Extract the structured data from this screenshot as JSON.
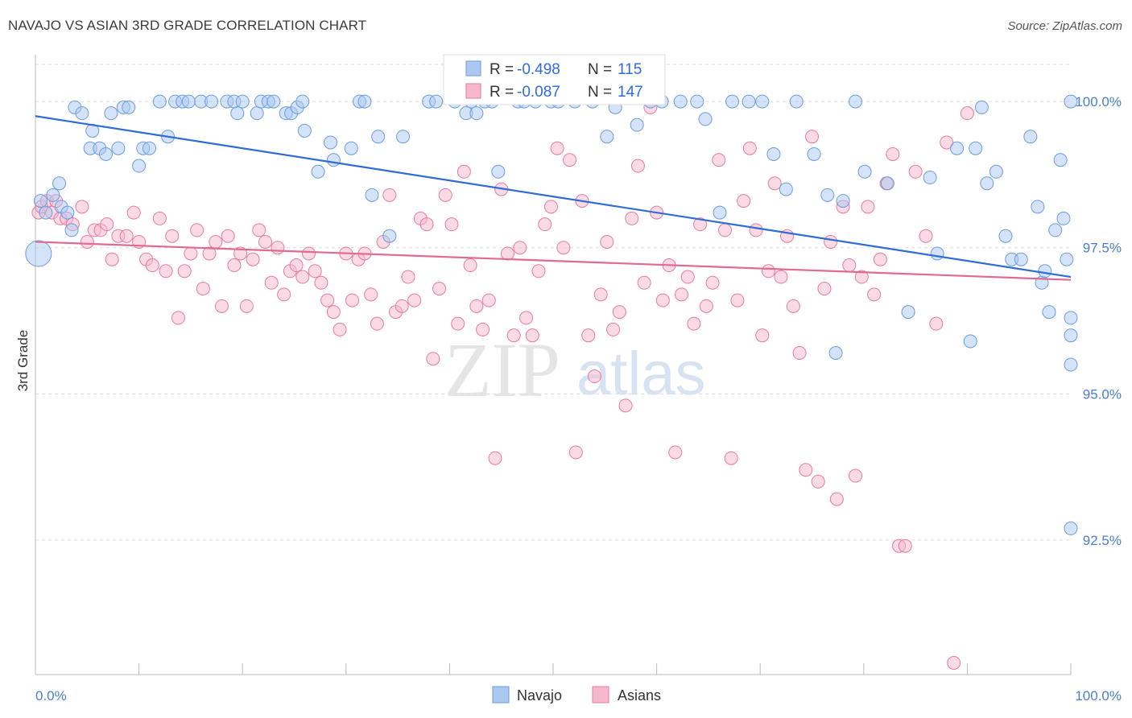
{
  "title": "NAVAJO VS ASIAN 3RD GRADE CORRELATION CHART",
  "source": "Source: ZipAtlas.com",
  "watermark": {
    "zip": "ZIP",
    "atlas": "atlas"
  },
  "chart_data": {
    "type": "scatter",
    "xlabel": "",
    "ylabel": "3rd Grade",
    "xlim": [
      0,
      100
    ],
    "ylim": [
      90.2,
      100.8
    ],
    "x_tick_labels": {
      "left": "0.0%",
      "right": "100.0%"
    },
    "y_ticks": [
      {
        "value": 100.0,
        "label": "100.0%"
      },
      {
        "value": 97.5,
        "label": "97.5%"
      },
      {
        "value": 95.0,
        "label": "95.0%"
      },
      {
        "value": 92.5,
        "label": "92.5%"
      }
    ],
    "legend_stats": [
      {
        "r_label": "R =",
        "r_value": "-0.498",
        "n_label": "N =",
        "n_value": "115"
      },
      {
        "r_label": "R =",
        "r_value": "-0.087",
        "n_label": "N =",
        "n_value": "147"
      }
    ],
    "series": [
      {
        "name": "Navajo",
        "color": "#6a9de0",
        "fill": "#aac8f0",
        "trend": {
          "x": [
            0,
            100
          ],
          "y": [
            99.75,
            97.0
          ]
        },
        "points": [
          [
            0.3,
            97.4
          ],
          [
            0.5,
            98.3
          ],
          [
            1.0,
            98.1
          ],
          [
            1.7,
            98.4
          ],
          [
            2.3,
            98.6
          ],
          [
            2.5,
            98.2
          ],
          [
            3.1,
            98.1
          ],
          [
            3.5,
            97.8
          ],
          [
            3.8,
            99.9
          ],
          [
            4.5,
            99.8
          ],
          [
            5.3,
            99.2
          ],
          [
            5.5,
            99.5
          ],
          [
            6.2,
            99.2
          ],
          [
            6.8,
            99.1
          ],
          [
            7.3,
            99.8
          ],
          [
            8.0,
            99.2
          ],
          [
            8.5,
            99.9
          ],
          [
            9.0,
            99.9
          ],
          [
            10.0,
            98.9
          ],
          [
            10.4,
            99.2
          ],
          [
            11.0,
            99.2
          ],
          [
            12.0,
            100.0
          ],
          [
            12.8,
            99.4
          ],
          [
            13.5,
            100.0
          ],
          [
            14.2,
            100.0
          ],
          [
            14.8,
            100.0
          ],
          [
            16.0,
            100.0
          ],
          [
            17.0,
            100.0
          ],
          [
            18.5,
            100.0
          ],
          [
            19.2,
            100.0
          ],
          [
            19.5,
            99.8
          ],
          [
            20.0,
            100.0
          ],
          [
            21.4,
            99.8
          ],
          [
            21.8,
            100.0
          ],
          [
            22.5,
            100.0
          ],
          [
            23.0,
            100.0
          ],
          [
            24.2,
            99.8
          ],
          [
            24.7,
            99.8
          ],
          [
            25.3,
            99.9
          ],
          [
            25.8,
            100.0
          ],
          [
            26.0,
            99.5
          ],
          [
            27.3,
            98.8
          ],
          [
            28.5,
            99.3
          ],
          [
            28.8,
            99.0
          ],
          [
            30.5,
            99.2
          ],
          [
            31.3,
            100.0
          ],
          [
            31.8,
            100.0
          ],
          [
            32.5,
            98.4
          ],
          [
            33.1,
            99.4
          ],
          [
            34.2,
            97.7
          ],
          [
            35.5,
            99.4
          ],
          [
            38.0,
            100.0
          ],
          [
            38.7,
            100.0
          ],
          [
            40.5,
            100.0
          ],
          [
            41.6,
            99.8
          ],
          [
            42.1,
            100.0
          ],
          [
            42.6,
            99.8
          ],
          [
            43.4,
            100.0
          ],
          [
            44.1,
            100.0
          ],
          [
            44.7,
            98.8
          ],
          [
            46.6,
            100.0
          ],
          [
            47.2,
            100.0
          ],
          [
            48.3,
            100.0
          ],
          [
            49.8,
            100.0
          ],
          [
            50.5,
            100.0
          ],
          [
            52.1,
            100.0
          ],
          [
            53.8,
            100.0
          ],
          [
            55.2,
            99.4
          ],
          [
            56.0,
            99.9
          ],
          [
            58.1,
            99.6
          ],
          [
            59.4,
            100.0
          ],
          [
            60.5,
            100.0
          ],
          [
            62.3,
            100.0
          ],
          [
            63.9,
            100.0
          ],
          [
            64.7,
            99.7
          ],
          [
            66.1,
            98.1
          ],
          [
            67.3,
            100.0
          ],
          [
            68.9,
            100.0
          ],
          [
            70.2,
            100.0
          ],
          [
            71.3,
            99.1
          ],
          [
            72.5,
            98.5
          ],
          [
            73.5,
            100.0
          ],
          [
            75.2,
            99.1
          ],
          [
            76.5,
            98.4
          ],
          [
            77.3,
            95.7
          ],
          [
            78.0,
            98.3
          ],
          [
            79.2,
            100.0
          ],
          [
            80.1,
            98.8
          ],
          [
            82.3,
            98.6
          ],
          [
            84.3,
            96.4
          ],
          [
            86.4,
            98.7
          ],
          [
            87.1,
            97.4
          ],
          [
            89.0,
            99.2
          ],
          [
            90.3,
            95.9
          ],
          [
            90.8,
            99.2
          ],
          [
            91.4,
            99.9
          ],
          [
            91.9,
            98.6
          ],
          [
            92.8,
            98.8
          ],
          [
            93.7,
            97.7
          ],
          [
            94.3,
            97.3
          ],
          [
            95.2,
            97.3
          ],
          [
            96.1,
            99.4
          ],
          [
            96.8,
            98.2
          ],
          [
            97.2,
            96.9
          ],
          [
            97.5,
            97.1
          ],
          [
            97.9,
            96.4
          ],
          [
            98.5,
            97.8
          ],
          [
            99.0,
            99.0
          ],
          [
            99.3,
            98.0
          ],
          [
            99.6,
            97.3
          ],
          [
            100.0,
            100.0
          ],
          [
            100.0,
            96.3
          ],
          [
            100.0,
            96.0
          ],
          [
            100.0,
            95.5
          ],
          [
            100.0,
            92.7
          ]
        ]
      },
      {
        "name": "Asians",
        "color": "#e87aa0",
        "fill": "#f5b8cc",
        "trend": {
          "x": [
            0,
            100
          ],
          "y": [
            97.6,
            96.95
          ]
        },
        "points": [
          [
            0.3,
            98.1
          ],
          [
            0.6,
            98.2
          ],
          [
            1.1,
            98.3
          ],
          [
            1.6,
            98.1
          ],
          [
            2.0,
            98.3
          ],
          [
            2.4,
            98.0
          ],
          [
            3.0,
            98.0
          ],
          [
            3.6,
            97.9
          ],
          [
            4.5,
            98.2
          ],
          [
            5.0,
            97.6
          ],
          [
            5.7,
            97.8
          ],
          [
            6.3,
            97.8
          ],
          [
            6.9,
            97.9
          ],
          [
            7.4,
            97.3
          ],
          [
            8.0,
            97.7
          ],
          [
            8.8,
            97.7
          ],
          [
            9.5,
            98.1
          ],
          [
            10.0,
            97.6
          ],
          [
            10.7,
            97.3
          ],
          [
            11.3,
            97.2
          ],
          [
            12.0,
            98.0
          ],
          [
            12.6,
            97.1
          ],
          [
            13.2,
            97.7
          ],
          [
            13.8,
            96.3
          ],
          [
            14.4,
            97.1
          ],
          [
            15.0,
            97.4
          ],
          [
            15.6,
            97.8
          ],
          [
            16.2,
            96.8
          ],
          [
            16.8,
            97.4
          ],
          [
            17.4,
            97.6
          ],
          [
            18.0,
            96.5
          ],
          [
            18.6,
            97.7
          ],
          [
            19.2,
            97.2
          ],
          [
            19.8,
            97.4
          ],
          [
            20.4,
            96.5
          ],
          [
            21.0,
            97.3
          ],
          [
            21.6,
            97.8
          ],
          [
            22.2,
            97.6
          ],
          [
            22.8,
            96.9
          ],
          [
            23.4,
            97.5
          ],
          [
            24.0,
            96.7
          ],
          [
            24.6,
            97.1
          ],
          [
            25.2,
            97.2
          ],
          [
            25.8,
            97.0
          ],
          [
            26.4,
            97.4
          ],
          [
            27.0,
            97.1
          ],
          [
            27.6,
            96.9
          ],
          [
            28.2,
            96.6
          ],
          [
            28.8,
            96.4
          ],
          [
            29.4,
            96.1
          ],
          [
            30.0,
            97.4
          ],
          [
            30.6,
            96.6
          ],
          [
            31.2,
            97.3
          ],
          [
            31.8,
            97.4
          ],
          [
            32.4,
            96.7
          ],
          [
            33.0,
            96.2
          ],
          [
            33.6,
            97.6
          ],
          [
            34.2,
            98.4
          ],
          [
            34.8,
            96.4
          ],
          [
            35.4,
            96.5
          ],
          [
            36.0,
            97.0
          ],
          [
            36.6,
            96.6
          ],
          [
            37.2,
            98.0
          ],
          [
            37.8,
            97.9
          ],
          [
            38.4,
            95.6
          ],
          [
            39.0,
            96.8
          ],
          [
            39.6,
            98.4
          ],
          [
            40.2,
            97.9
          ],
          [
            40.8,
            96.2
          ],
          [
            41.4,
            98.8
          ],
          [
            42.0,
            97.2
          ],
          [
            42.6,
            96.5
          ],
          [
            43.2,
            96.1
          ],
          [
            43.8,
            96.6
          ],
          [
            44.4,
            93.9
          ],
          [
            45.0,
            98.5
          ],
          [
            45.6,
            97.4
          ],
          [
            46.2,
            96.0
          ],
          [
            46.8,
            97.5
          ],
          [
            47.4,
            96.3
          ],
          [
            48.0,
            96.0
          ],
          [
            48.6,
            97.1
          ],
          [
            49.2,
            97.9
          ],
          [
            49.8,
            98.2
          ],
          [
            50.4,
            99.2
          ],
          [
            51.0,
            97.5
          ],
          [
            51.6,
            99.0
          ],
          [
            52.2,
            94.0
          ],
          [
            52.8,
            98.3
          ],
          [
            53.4,
            96.0
          ],
          [
            54.0,
            95.3
          ],
          [
            54.6,
            96.7
          ],
          [
            55.2,
            97.6
          ],
          [
            55.8,
            96.1
          ],
          [
            56.4,
            96.4
          ],
          [
            57.0,
            94.8
          ],
          [
            57.6,
            98.0
          ],
          [
            58.2,
            98.9
          ],
          [
            58.8,
            96.9
          ],
          [
            59.4,
            99.9
          ],
          [
            60.0,
            98.1
          ],
          [
            60.6,
            96.6
          ],
          [
            61.2,
            97.2
          ],
          [
            61.8,
            94.0
          ],
          [
            62.4,
            96.7
          ],
          [
            63.0,
            97.0
          ],
          [
            63.6,
            96.2
          ],
          [
            64.2,
            97.9
          ],
          [
            64.8,
            96.5
          ],
          [
            65.4,
            96.9
          ],
          [
            66.0,
            99.0
          ],
          [
            66.6,
            97.8
          ],
          [
            67.2,
            93.9
          ],
          [
            67.8,
            96.6
          ],
          [
            68.4,
            98.3
          ],
          [
            69.0,
            99.2
          ],
          [
            69.6,
            97.8
          ],
          [
            70.2,
            96.0
          ],
          [
            70.8,
            97.1
          ],
          [
            71.4,
            98.6
          ],
          [
            72.0,
            97.0
          ],
          [
            72.6,
            97.7
          ],
          [
            73.2,
            96.5
          ],
          [
            73.8,
            95.7
          ],
          [
            74.4,
            93.7
          ],
          [
            75.0,
            99.4
          ],
          [
            75.6,
            93.5
          ],
          [
            76.2,
            96.8
          ],
          [
            76.8,
            97.6
          ],
          [
            77.4,
            93.2
          ],
          [
            78.0,
            98.2
          ],
          [
            78.6,
            97.2
          ],
          [
            79.2,
            93.6
          ],
          [
            79.8,
            97.0
          ],
          [
            80.4,
            98.2
          ],
          [
            81.0,
            96.7
          ],
          [
            81.6,
            97.3
          ],
          [
            82.2,
            98.6
          ],
          [
            82.8,
            99.1
          ],
          [
            83.4,
            92.4
          ],
          [
            84.0,
            92.4
          ],
          [
            85.0,
            98.8
          ],
          [
            86.0,
            97.7
          ],
          [
            87.0,
            96.2
          ],
          [
            88.0,
            99.3
          ],
          [
            88.7,
            90.4
          ],
          [
            90.0,
            99.8
          ]
        ]
      }
    ],
    "legend_bottom": [
      {
        "label": "Navajo"
      },
      {
        "label": "Asians"
      }
    ]
  },
  "colors": {
    "navajo_trend": "#2f6cd6",
    "asian_trend": "#e06a95",
    "grid": "#dddddd",
    "axis": "#bbbbbb"
  }
}
